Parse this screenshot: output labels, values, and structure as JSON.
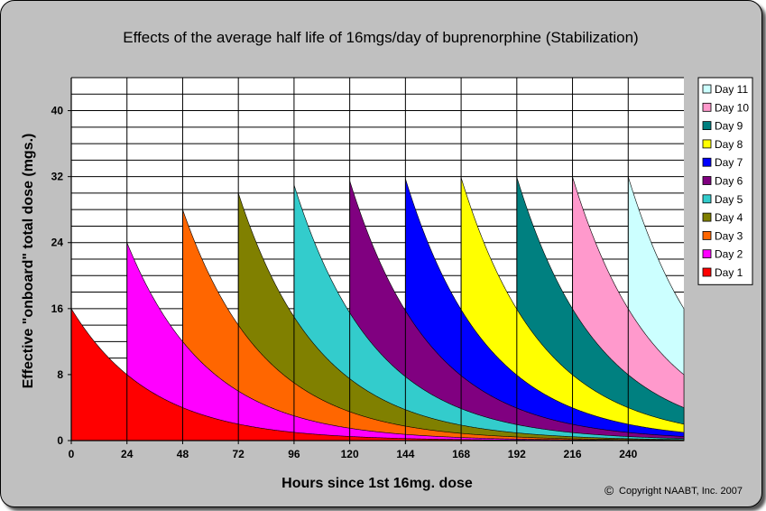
{
  "chart_data": {
    "type": "area",
    "title": "Effects of the average half life of 16mgs/day of buprenorphine (Stabilization)",
    "xlabel": "Hours since 1st 16mg. dose",
    "ylabel": "Effective \"onboard\" total dose (mgs.)",
    "xlim": [
      0,
      264
    ],
    "ylim": [
      0,
      44
    ],
    "x_ticks": [
      "0",
      "24",
      "48",
      "72",
      "96",
      "120",
      "144",
      "168",
      "192",
      "216",
      "240"
    ],
    "y_ticks": [
      "0",
      "8",
      "16",
      "24",
      "32",
      "40"
    ],
    "dose_mg": 16,
    "dose_interval_h": 24,
    "half_life_h": 24,
    "grid": true,
    "legend_position": "right",
    "series": [
      {
        "name": "Day 1",
        "start_hour": 0,
        "color": "#ff0000"
      },
      {
        "name": "Day 2",
        "start_hour": 24,
        "color": "#ff00ff"
      },
      {
        "name": "Day 3",
        "start_hour": 48,
        "color": "#ff6600"
      },
      {
        "name": "Day 4",
        "start_hour": 72,
        "color": "#808000"
      },
      {
        "name": "Day 5",
        "start_hour": 96,
        "color": "#33cccc"
      },
      {
        "name": "Day 6",
        "start_hour": 120,
        "color": "#800080"
      },
      {
        "name": "Day 7",
        "start_hour": 144,
        "color": "#0000ff"
      },
      {
        "name": "Day 8",
        "start_hour": 168,
        "color": "#ffff00"
      },
      {
        "name": "Day 9",
        "start_hour": 192,
        "color": "#008080"
      },
      {
        "name": "Day 10",
        "start_hour": 216,
        "color": "#ff99cc"
      },
      {
        "name": "Day 11",
        "start_hour": 240,
        "color": "#ccffff"
      }
    ]
  },
  "copyright": "Copyright NAABT, Inc. 2007",
  "copyright_symbol": "©"
}
